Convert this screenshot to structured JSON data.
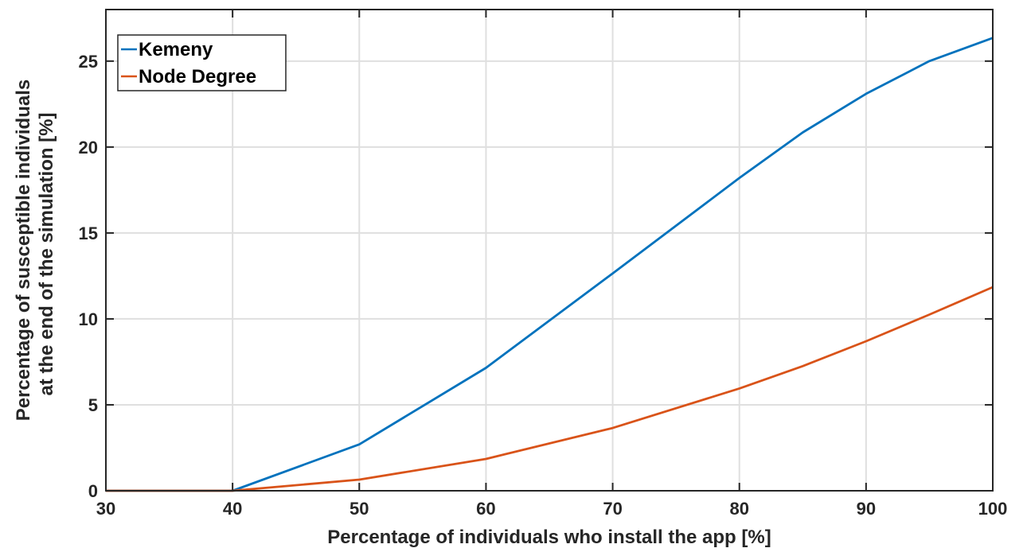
{
  "chart_data": {
    "type": "line",
    "xlabel": "Percentage of individuals who install the app [%]",
    "ylabel_lines": [
      "Percentage of susceptible individuals",
      "at the end of the simulation [%]"
    ],
    "xlim": [
      30,
      100
    ],
    "ylim": [
      0,
      28
    ],
    "xticks": [
      30,
      40,
      50,
      60,
      70,
      80,
      90,
      100
    ],
    "yticks": [
      0,
      5,
      10,
      15,
      20,
      25
    ],
    "grid": true,
    "legend_position": "top-left",
    "series": [
      {
        "name": "Kemeny",
        "color": "#0072BD",
        "x": [
          30,
          40,
          50,
          60,
          70,
          80,
          85,
          90,
          95,
          100
        ],
        "y": [
          0,
          0,
          2.7,
          7.15,
          12.65,
          18.2,
          20.85,
          23.1,
          25.0,
          26.35
        ]
      },
      {
        "name": "Node Degree",
        "color": "#D95319",
        "x": [
          30,
          40,
          50,
          60,
          70,
          80,
          85,
          90,
          95,
          100
        ],
        "y": [
          0,
          0,
          0.65,
          1.85,
          3.65,
          5.95,
          7.25,
          8.7,
          10.25,
          11.85
        ]
      }
    ]
  }
}
